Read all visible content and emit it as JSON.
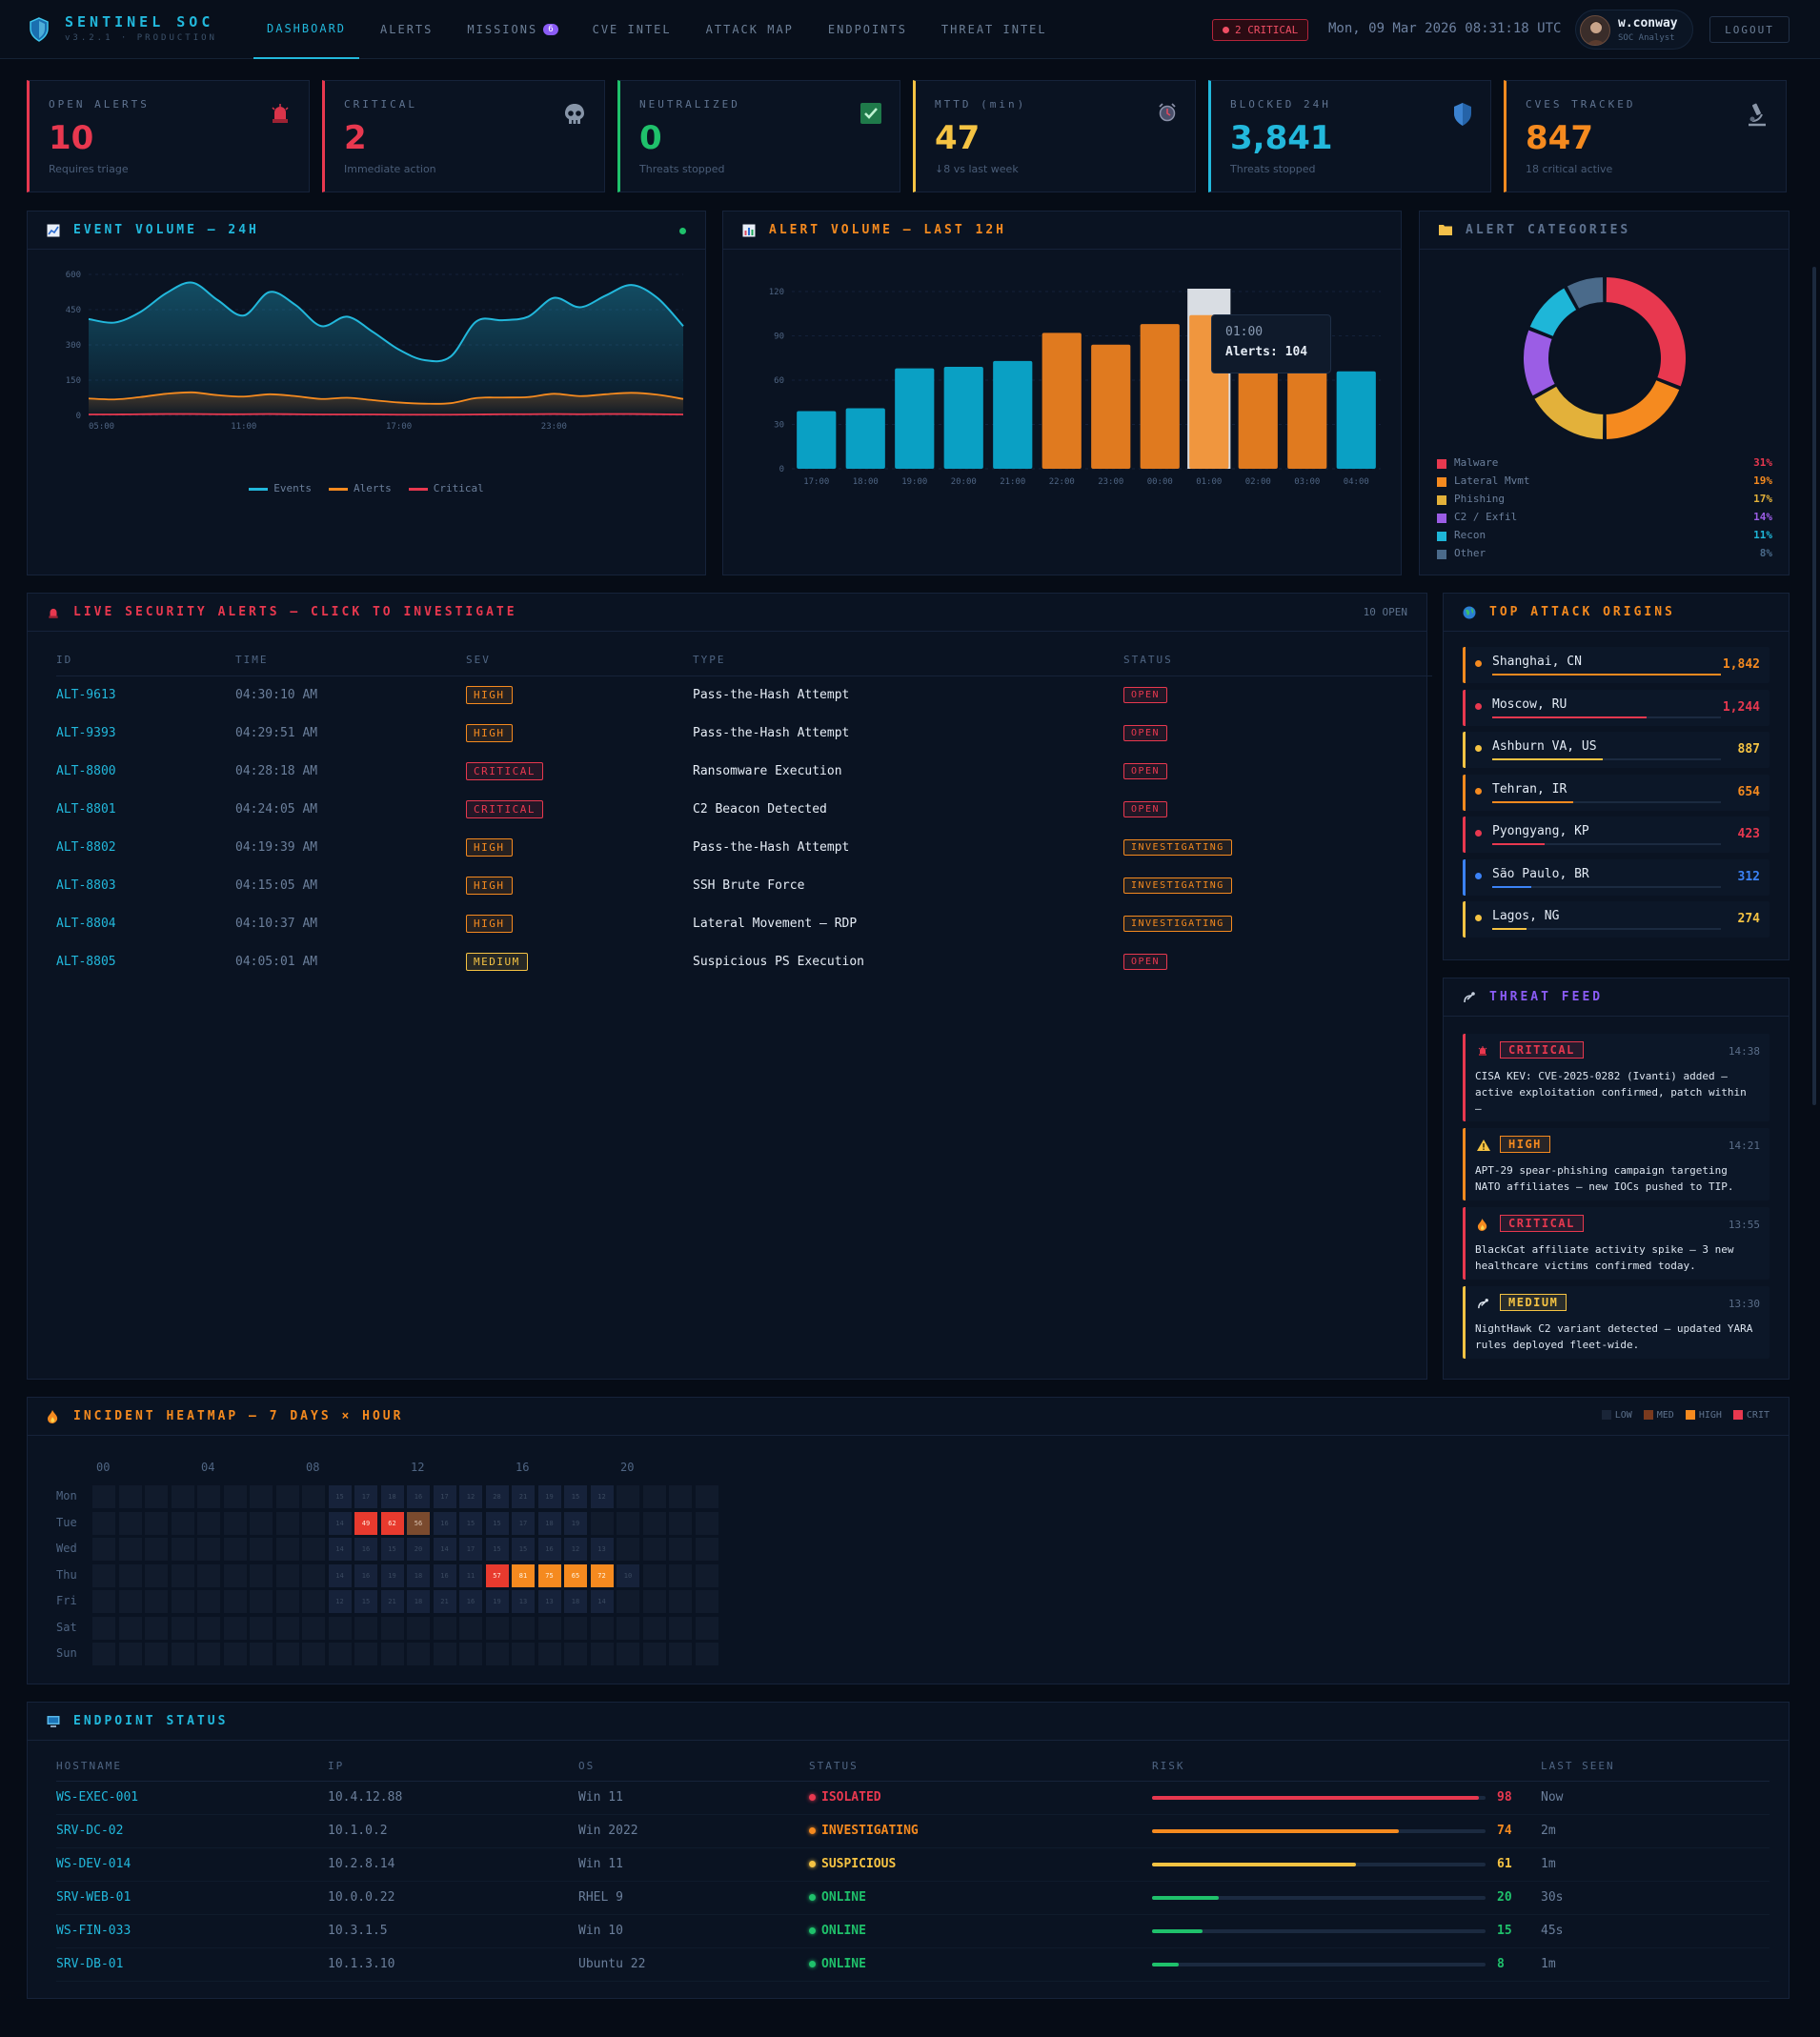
{
  "app": {
    "name": "SENTINEL SOC",
    "version": "v3.2.1 · PRODUCTION"
  },
  "nav": [
    {
      "label": "DASHBOARD",
      "active": true
    },
    {
      "label": "ALERTS"
    },
    {
      "label": "MISSIONS",
      "badge": "6"
    },
    {
      "label": "CVE INTEL"
    },
    {
      "label": "ATTACK MAP"
    },
    {
      "label": "ENDPOINTS"
    },
    {
      "label": "THREAT INTEL"
    }
  ],
  "header": {
    "critical_pill": "2 CRITICAL",
    "clock": "Mon, 09 Mar 2026 08:31:18 UTC",
    "user_name": "w.conway",
    "user_role": "SOC Analyst",
    "logout": "LOGOUT"
  },
  "kpis": [
    {
      "label": "OPEN ALERTS",
      "value": "10",
      "sub": "Requires triage",
      "color": "#e8384f",
      "icon": "siren-icon"
    },
    {
      "label": "CRITICAL",
      "value": "2",
      "sub": "Immediate action",
      "color": "#e8384f",
      "icon": "skull-icon"
    },
    {
      "label": "NEUTRALIZED",
      "value": "0",
      "sub": "Threats stopped",
      "color": "#1fc16b",
      "icon": "check-icon"
    },
    {
      "label": "MTTD (min)",
      "value": "47",
      "sub": "↓8 vs last week",
      "color": "#f5c343",
      "icon": "alarm-icon"
    },
    {
      "label": "BLOCKED 24H",
      "value": "3,841",
      "sub": "Threats stopped",
      "color": "#22b8dc",
      "icon": "shield-icon"
    },
    {
      "label": "CVES TRACKED",
      "value": "847",
      "sub": "18 critical active",
      "color": "#f58a1f",
      "icon": "microscope-icon"
    }
  ],
  "event_chart": {
    "title": "EVENT VOLUME — 24H",
    "chart_data": {
      "type": "line",
      "x": [
        "05:00",
        "06:00",
        "07:00",
        "08:00",
        "09:00",
        "10:00",
        "11:00",
        "12:00",
        "13:00",
        "14:00",
        "15:00",
        "16:00",
        "17:00",
        "18:00",
        "19:00",
        "20:00",
        "21:00",
        "22:00",
        "23:00",
        "00:00",
        "01:00",
        "02:00",
        "03:00",
        "04:00"
      ],
      "x_ticks": [
        "05:00",
        "11:00",
        "17:00",
        "23:00"
      ],
      "y_ticks": [
        "600",
        "450",
        "300",
        "150",
        "0"
      ],
      "ylim": [
        0,
        600
      ],
      "series": [
        {
          "name": "Events",
          "color": "#22b8dc",
          "values": [
            410,
            395,
            440,
            520,
            565,
            490,
            425,
            525,
            470,
            380,
            420,
            355,
            280,
            235,
            250,
            400,
            405,
            420,
            500,
            460,
            510,
            555,
            500,
            380
          ]
        },
        {
          "name": "Alerts",
          "color": "#f58a1f",
          "values": [
            72,
            68,
            78,
            92,
            98,
            86,
            80,
            90,
            82,
            70,
            75,
            65,
            55,
            50,
            52,
            74,
            76,
            78,
            92,
            82,
            90,
            96,
            88,
            70
          ]
        },
        {
          "name": "Critical",
          "color": "#e8384f",
          "values": [
            4,
            4,
            5,
            6,
            6,
            5,
            5,
            6,
            5,
            4,
            4,
            4,
            3,
            3,
            3,
            4,
            5,
            5,
            6,
            5,
            6,
            6,
            5,
            4
          ]
        }
      ]
    }
  },
  "alert_chart": {
    "title": "ALERT VOLUME — LAST 12H",
    "tooltip_time": "01:00",
    "tooltip_value": "Alerts: 104",
    "chart_data": {
      "type": "bar",
      "categories": [
        "17:00",
        "18:00",
        "19:00",
        "20:00",
        "21:00",
        "22:00",
        "23:00",
        "00:00",
        "01:00",
        "02:00",
        "03:00",
        "04:00"
      ],
      "values": [
        39,
        41,
        68,
        69,
        73,
        92,
        84,
        98,
        104,
        66,
        94,
        66
      ],
      "colors": [
        "#0aa0c4",
        "#0aa0c4",
        "#0aa0c4",
        "#0aa0c4",
        "#0aa0c4",
        "#e07a1f",
        "#e07a1f",
        "#e07a1f",
        "#f0963e",
        "#e07a1f",
        "#e07a1f",
        "#0aa0c4"
      ],
      "y_ticks": [
        "120",
        "90",
        "60",
        "30",
        "0"
      ],
      "ylim": [
        0,
        120
      ]
    }
  },
  "categories": {
    "title": "ALERT CATEGORIES",
    "chart_data": {
      "type": "pie",
      "labels": [
        "Malware",
        "Lateral Mvmt",
        "Phishing",
        "C2 / Exfil",
        "Recon",
        "Other"
      ],
      "pct_labels": [
        "31%",
        "19%",
        "17%",
        "14%",
        "11%",
        "8%"
      ],
      "values": [
        31,
        19,
        17,
        14,
        11,
        8
      ],
      "colors": [
        "#e8384f",
        "#f58a1f",
        "#e3b13a",
        "#9b5de5",
        "#1eb6d8",
        "#4a6a8a"
      ]
    }
  },
  "alerts": {
    "title": "LIVE SECURITY ALERTS — CLICK TO INVESTIGATE",
    "count": "10 OPEN",
    "headers": [
      "ID",
      "TIME",
      "SEV",
      "TYPE",
      "STATUS"
    ],
    "rows": [
      {
        "id": "ALT-9613",
        "time": "04:30:10 AM",
        "sev": "HIGH",
        "type": "Pass-the-Hash Attempt",
        "status": "OPEN"
      },
      {
        "id": "ALT-9393",
        "time": "04:29:51 AM",
        "sev": "HIGH",
        "type": "Pass-the-Hash Attempt",
        "status": "OPEN"
      },
      {
        "id": "ALT-8800",
        "time": "04:28:18 AM",
        "sev": "CRITICAL",
        "type": "Ransomware Execution",
        "status": "OPEN"
      },
      {
        "id": "ALT-8801",
        "time": "04:24:05 AM",
        "sev": "CRITICAL",
        "type": "C2 Beacon Detected",
        "status": "OPEN"
      },
      {
        "id": "ALT-8802",
        "time": "04:19:39 AM",
        "sev": "HIGH",
        "type": "Pass-the-Hash Attempt",
        "status": "INVESTIGATING"
      },
      {
        "id": "ALT-8803",
        "time": "04:15:05 AM",
        "sev": "HIGH",
        "type": "SSH Brute Force",
        "status": "INVESTIGATING"
      },
      {
        "id": "ALT-8804",
        "time": "04:10:37 AM",
        "sev": "HIGH",
        "type": "Lateral Movement — RDP",
        "status": "INVESTIGATING"
      },
      {
        "id": "ALT-8805",
        "time": "04:05:01 AM",
        "sev": "MEDIUM",
        "type": "Suspicious PS Execution",
        "status": "OPEN"
      }
    ]
  },
  "origins": {
    "title": "TOP ATTACK ORIGINS",
    "items": [
      {
        "name": "Shanghai, CN",
        "count": "1,842",
        "value": 1842,
        "color": "#f58a1f"
      },
      {
        "name": "Moscow, RU",
        "count": "1,244",
        "value": 1244,
        "color": "#e8384f"
      },
      {
        "name": "Ashburn VA, US",
        "count": "887",
        "value": 887,
        "color": "#f5c343"
      },
      {
        "name": "Tehran, IR",
        "count": "654",
        "value": 654,
        "color": "#f58a1f"
      },
      {
        "name": "Pyongyang, KP",
        "count": "423",
        "value": 423,
        "color": "#e8384f"
      },
      {
        "name": "São Paulo, BR",
        "count": "312",
        "value": 312,
        "color": "#3b82f6"
      },
      {
        "name": "Lagos, NG",
        "count": "274",
        "value": 274,
        "color": "#f5c343"
      }
    ]
  },
  "feed": {
    "title": "THREAT FEED",
    "items": [
      {
        "sev": "CRITICAL",
        "time": "14:38",
        "text": "CISA KEV: CVE-2025-0282 (Ivanti) added — active exploitation confirmed, patch within —",
        "color": "#e8384f",
        "icon": "siren-icon"
      },
      {
        "sev": "HIGH",
        "time": "14:21",
        "text": "APT-29 spear-phishing campaign targeting NATO affiliates — new IOCs pushed to TIP.",
        "color": "#f58a1f",
        "icon": "warning-icon"
      },
      {
        "sev": "CRITICAL",
        "time": "13:55",
        "text": "BlackCat affiliate activity spike — 3 new healthcare victims confirmed today.",
        "color": "#e8384f",
        "icon": "fire-icon"
      },
      {
        "sev": "MEDIUM",
        "time": "13:30",
        "text": "NightHawk C2 variant detected — updated YARA rules deployed fleet-wide.",
        "color": "#f5c343",
        "icon": "satellite-icon"
      }
    ]
  },
  "heatmap": {
    "title": "INCIDENT HEATMAP — 7 DAYS × HOUR",
    "legend": [
      "LOW",
      "MED",
      "HIGH",
      "CRIT"
    ],
    "hour_labels": [
      "00",
      "04",
      "08",
      "12",
      "16",
      "20"
    ],
    "days": [
      "Mon",
      "Tue",
      "Wed",
      "Thu",
      "Fri",
      "Sat",
      "Sun"
    ],
    "chart_data": {
      "type": "heatmap",
      "rows": [
        [
          0,
          0,
          0,
          0,
          0,
          0,
          0,
          0,
          0,
          15,
          17,
          18,
          16,
          17,
          12,
          28,
          21,
          19,
          15,
          12,
          0,
          0,
          0,
          0
        ],
        [
          0,
          0,
          0,
          0,
          0,
          0,
          0,
          0,
          0,
          14,
          49,
          62,
          56,
          16,
          15,
          15,
          17,
          18,
          19,
          0,
          0,
          0,
          0,
          0
        ],
        [
          0,
          0,
          0,
          0,
          0,
          0,
          0,
          0,
          0,
          14,
          16,
          15,
          20,
          14,
          17,
          15,
          15,
          16,
          12,
          13,
          0,
          0,
          0,
          0
        ],
        [
          0,
          0,
          0,
          0,
          0,
          0,
          0,
          0,
          0,
          14,
          16,
          19,
          18,
          16,
          11,
          57,
          81,
          75,
          65,
          72,
          10,
          0,
          0,
          0
        ],
        [
          0,
          0,
          0,
          0,
          0,
          0,
          0,
          0,
          0,
          12,
          15,
          21,
          18,
          21,
          16,
          19,
          13,
          13,
          18,
          14,
          0,
          0,
          0,
          0
        ],
        [
          0,
          0,
          0,
          0,
          0,
          0,
          0,
          0,
          0,
          0,
          0,
          0,
          0,
          0,
          0,
          0,
          0,
          0,
          0,
          0,
          0,
          0,
          0,
          0
        ],
        [
          0,
          0,
          0,
          0,
          0,
          0,
          0,
          0,
          0,
          0,
          0,
          0,
          0,
          0,
          0,
          0,
          0,
          0,
          0,
          0,
          0,
          0,
          0,
          0
        ]
      ]
    }
  },
  "endpoints": {
    "title": "ENDPOINT STATUS",
    "headers": [
      "HOSTNAME",
      "IP",
      "OS",
      "STATUS",
      "RISK",
      "LAST SEEN"
    ],
    "rows": [
      {
        "host": "WS-EXEC-001",
        "ip": "10.4.12.88",
        "os": "Win 11",
        "status": "ISOLATED",
        "risk": "98",
        "risk_value": 98,
        "seen": "Now",
        "color": "#e8384f"
      },
      {
        "host": "SRV-DC-02",
        "ip": "10.1.0.2",
        "os": "Win 2022",
        "status": "INVESTIGATING",
        "risk": "74",
        "risk_value": 74,
        "seen": "2m",
        "color": "#f58a1f"
      },
      {
        "host": "WS-DEV-014",
        "ip": "10.2.8.14",
        "os": "Win 11",
        "status": "SUSPICIOUS",
        "risk": "61",
        "risk_value": 61,
        "seen": "1m",
        "color": "#f5c343"
      },
      {
        "host": "SRV-WEB-01",
        "ip": "10.0.0.22",
        "os": "RHEL 9",
        "status": "ONLINE",
        "risk": "20",
        "risk_value": 20,
        "seen": "30s",
        "color": "#1fc16b"
      },
      {
        "host": "WS-FIN-033",
        "ip": "10.3.1.5",
        "os": "Win 10",
        "status": "ONLINE",
        "risk": "15",
        "risk_value": 15,
        "seen": "45s",
        "color": "#1fc16b"
      },
      {
        "host": "SRV-DB-01",
        "ip": "10.1.3.10",
        "os": "Ubuntu 22",
        "status": "ONLINE",
        "risk": "8",
        "risk_value": 8,
        "seen": "1m",
        "color": "#1fc16b"
      }
    ]
  }
}
